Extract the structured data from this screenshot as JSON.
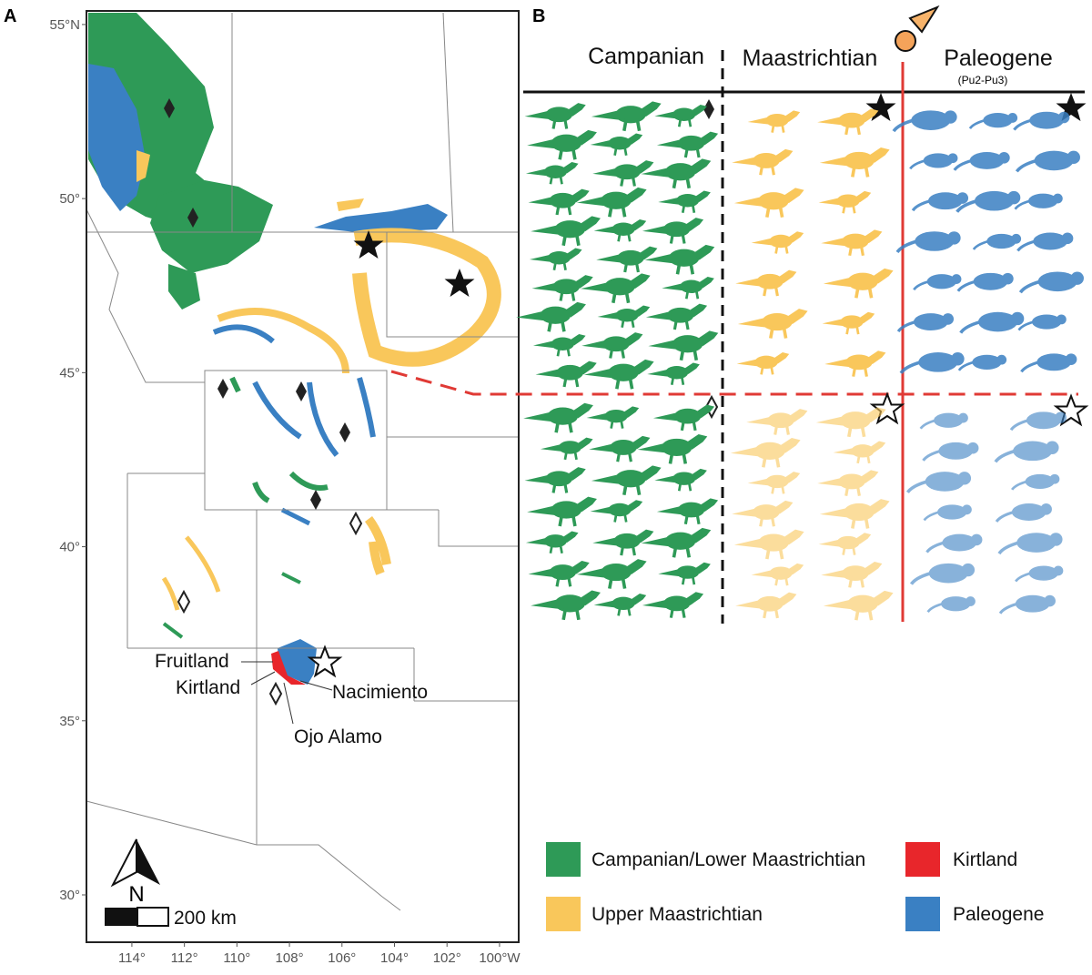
{
  "map": {
    "panel_label": "A",
    "xlim": [
      115.73,
      99.27
    ],
    "ylim": [
      28.64,
      55.39
    ],
    "lat_ticks": [
      {
        "value": 55,
        "label": "55°N"
      },
      {
        "value": 50,
        "label": "50°"
      },
      {
        "value": 45,
        "label": "45°"
      },
      {
        "value": 40,
        "label": "40°"
      },
      {
        "value": 35,
        "label": "35°"
      },
      {
        "value": 30,
        "label": "30°"
      }
    ],
    "lon_ticks": [
      {
        "value": 114,
        "label": "114°"
      },
      {
        "value": 112,
        "label": "112°"
      },
      {
        "value": 110,
        "label": "110°"
      },
      {
        "value": 108,
        "label": "108°"
      },
      {
        "value": 106,
        "label": "106°"
      },
      {
        "value": 104,
        "label": "104°"
      },
      {
        "value": 102,
        "label": "102°"
      },
      {
        "value": 100,
        "label": "100°W"
      }
    ],
    "labels": {
      "fruitland": "Fruitland",
      "kirtland": "Kirtland",
      "nacimiento": "Nacimiento",
      "ojo_alamo": "Ojo Alamo"
    },
    "north": "N",
    "scale": "200 km"
  },
  "panel_b": {
    "panel_label": "B",
    "headers": {
      "campanian": "Campanian",
      "maastrichtian": "Maastrichtian",
      "paleogene": "Paleogene",
      "paleogene_sub": "(Pu2-Pu3)"
    }
  },
  "legend": [
    {
      "label": "Campanian/Lower Maastrichtian",
      "color": "#2e9a57"
    },
    {
      "label": "Kirtland",
      "color": "#e8262b"
    },
    {
      "label": "Upper Maastrichtian",
      "color": "#f9c75b"
    },
    {
      "label": "Paleogene",
      "color": "#3a80c3"
    }
  ]
}
